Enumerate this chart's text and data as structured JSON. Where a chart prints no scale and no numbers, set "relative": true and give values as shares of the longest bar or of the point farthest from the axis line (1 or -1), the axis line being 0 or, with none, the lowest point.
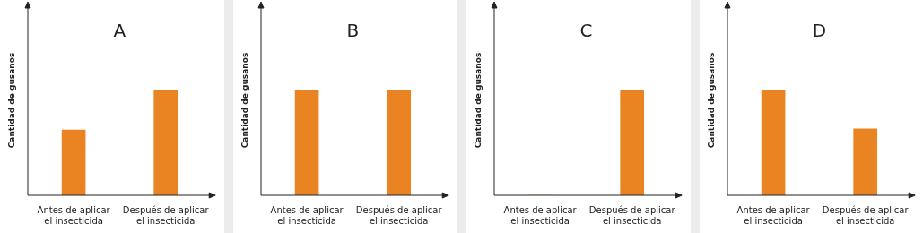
{
  "chart_data": [
    {
      "type": "bar",
      "title": "A",
      "ylabel": "Cantidad de gusanos",
      "categories": [
        "Antes de aplicar el insecticida",
        "Después de aplicar el insecticida"
      ],
      "relative": true,
      "color": "#ea8423",
      "values": [
        0.62,
        1
      ]
    },
    {
      "type": "bar",
      "title": "B",
      "ylabel": "Cantidad de gusanos",
      "categories": [
        "Antes de aplicar el insecticida",
        "Después de aplicar el insecticida"
      ],
      "relative": true,
      "color": "#ea8423",
      "values": [
        1,
        1
      ]
    },
    {
      "type": "bar",
      "title": "C",
      "ylabel": "Cantidad de gusanos",
      "categories": [
        "Antes de aplicar el insecticida",
        "Después de aplicar el insecticida"
      ],
      "relative": true,
      "color": "#ea8423",
      "values": [
        0,
        1
      ]
    },
    {
      "type": "bar",
      "title": "D",
      "ylabel": "Cantidad de gusanos",
      "categories": [
        "Antes de aplicar el insecticida",
        "Después de aplicar el insecticida"
      ],
      "relative": true,
      "color": "#ea8423",
      "values": [
        1,
        0.63
      ]
    }
  ]
}
